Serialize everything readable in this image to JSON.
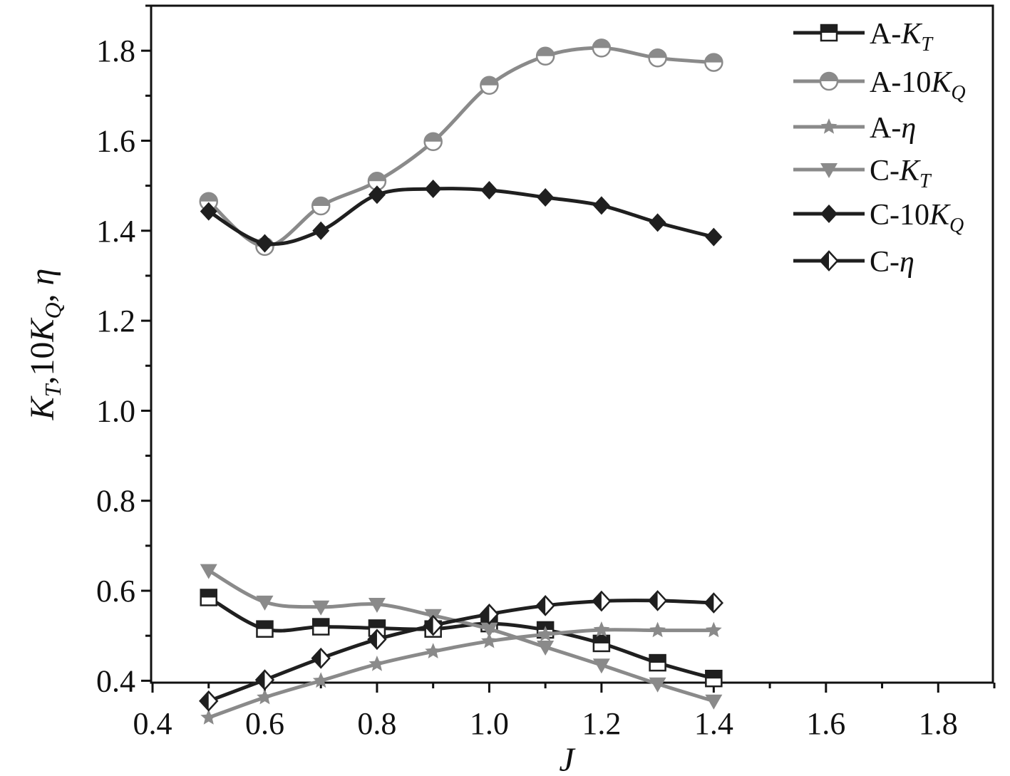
{
  "chart_data": {
    "type": "line",
    "xlabel": "J",
    "ylabel": "K_T,10K_Q, η",
    "xlim": [
      0.4,
      1.9
    ],
    "ylim": [
      0.3,
      1.9
    ],
    "x_ticks": [
      "0.4",
      "0.6",
      "0.8",
      "1.0",
      "1.2",
      "1.4",
      "1.6",
      "1.8"
    ],
    "y_ticks": [
      "0.4",
      "0.6",
      "0.8",
      "1.0",
      "1.2",
      "1.4",
      "1.6",
      "1.8"
    ],
    "grid": false,
    "legend_position": "top-right",
    "x": [
      0.5,
      0.6,
      0.7,
      0.8,
      0.9,
      1.0,
      1.1,
      1.2,
      1.3,
      1.4
    ],
    "series": [
      {
        "name": "A-K_T",
        "legend_prefix": "A-",
        "legend_main": "K",
        "legend_sub": "T",
        "color": "#1f1f1f",
        "marker": "square-half",
        "values": [
          0.585,
          0.515,
          0.52,
          0.517,
          0.515,
          0.527,
          0.513,
          0.483,
          0.44,
          0.405
        ]
      },
      {
        "name": "A-10K_Q",
        "legend_prefix": "A-10",
        "legend_main": "K",
        "legend_sub": "Q",
        "color": "#8a8a8a",
        "marker": "circle-half",
        "values": [
          1.465,
          1.365,
          1.455,
          1.51,
          1.598,
          1.723,
          1.788,
          1.806,
          1.784,
          1.774
        ]
      },
      {
        "name": "A-η",
        "legend_prefix": "A-",
        "legend_main": "η",
        "legend_sub": "",
        "color": "#8a8a8a",
        "marker": "star",
        "values": [
          0.318,
          0.363,
          0.4,
          0.437,
          0.465,
          0.488,
          0.503,
          0.513,
          0.512,
          0.512
        ]
      },
      {
        "name": "C-K_T",
        "legend_prefix": "C-",
        "legend_main": "K",
        "legend_sub": "T",
        "color": "#8a8a8a",
        "marker": "triangle-down",
        "values": [
          0.645,
          0.575,
          0.564,
          0.57,
          0.545,
          0.515,
          0.475,
          0.435,
          0.393,
          0.355
        ]
      },
      {
        "name": "C-10K_Q",
        "legend_prefix": "C-10",
        "legend_main": "K",
        "legend_sub": "Q",
        "color": "#1f1f1f",
        "marker": "diamond",
        "values": [
          1.443,
          1.372,
          1.4,
          1.48,
          1.493,
          1.49,
          1.474,
          1.456,
          1.418,
          1.386
        ]
      },
      {
        "name": "C-η",
        "legend_prefix": "C-",
        "legend_main": "η",
        "legend_sub": "",
        "color": "#1f1f1f",
        "marker": "diamond-half",
        "values": [
          0.355,
          0.402,
          0.45,
          0.492,
          0.523,
          0.548,
          0.567,
          0.577,
          0.578,
          0.573
        ]
      }
    ]
  }
}
